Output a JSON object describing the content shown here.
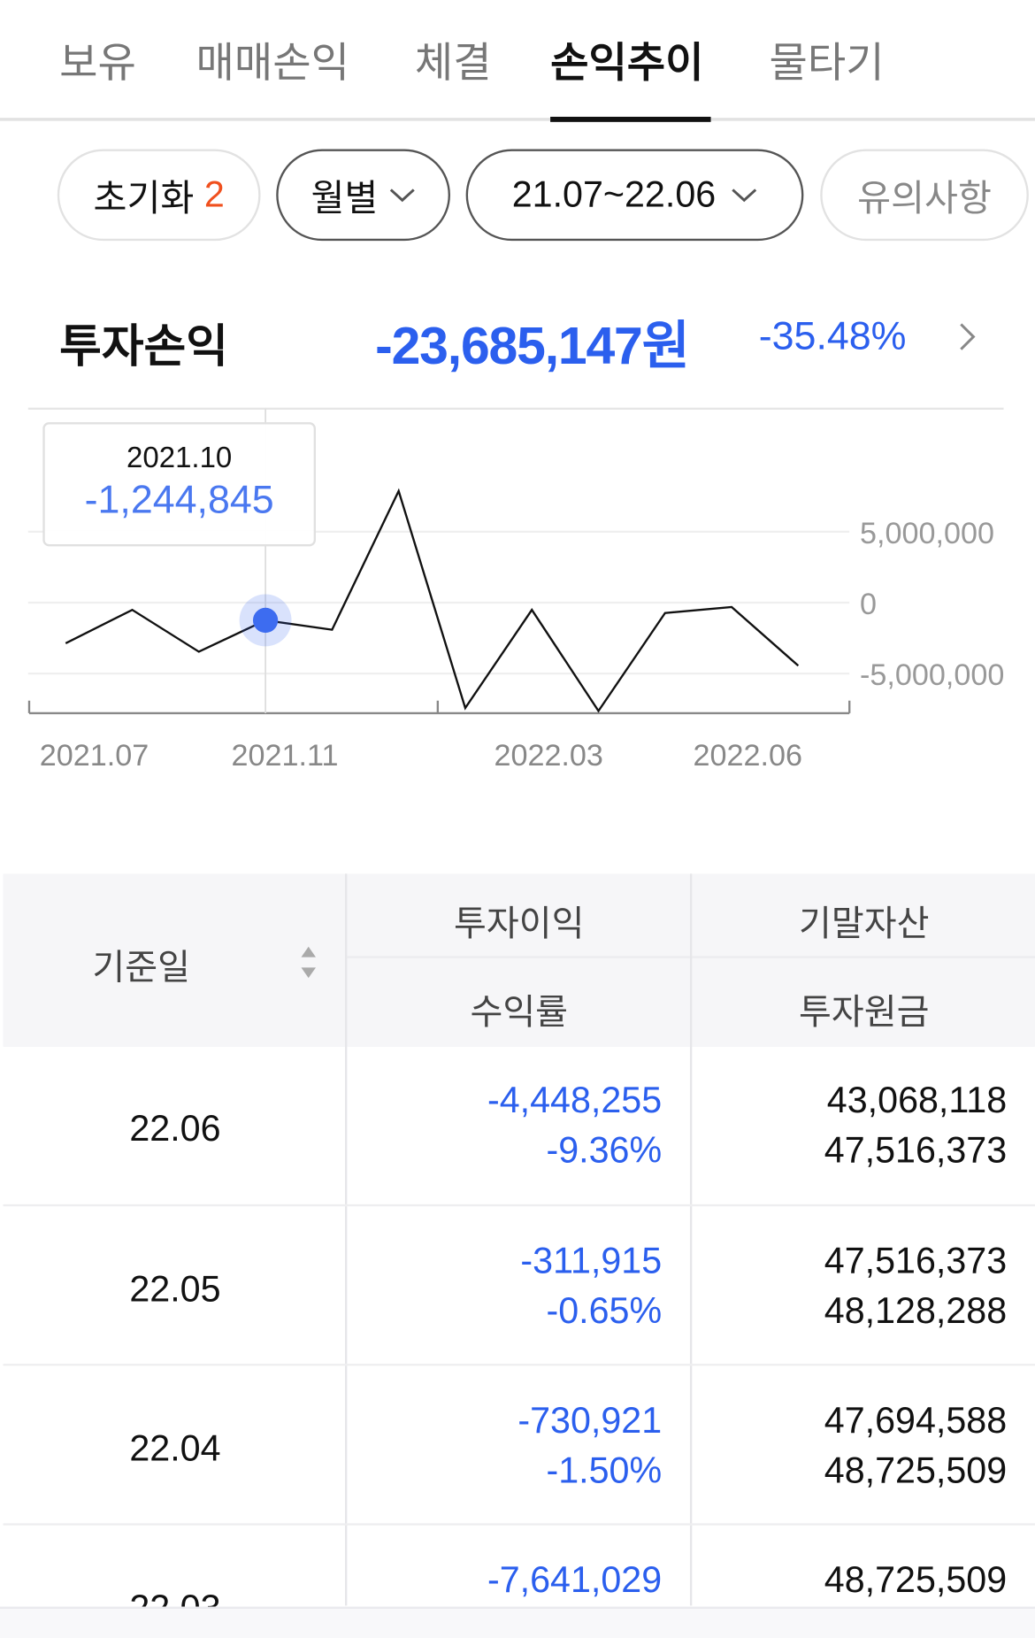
{
  "tabs": [
    {
      "label": "보유"
    },
    {
      "label": "매매손익"
    },
    {
      "label": "체결"
    },
    {
      "label": "손익추이",
      "active": true
    },
    {
      "label": "물타기"
    }
  ],
  "filters": {
    "reset_label": "초기화",
    "reset_count": "2",
    "period_type": "월별",
    "date_range": "21.07~22.06",
    "notice_label": "유의사항"
  },
  "summary": {
    "label": "투자손익",
    "amount": "-23,685,147원",
    "rate": "-35.48%"
  },
  "colors": {
    "accent": "#2b5fee",
    "reset_count": "#f0501e"
  },
  "tooltip": {
    "date": "2021.10",
    "value": "-1,244,845"
  },
  "chart_data": {
    "type": "line",
    "x": [
      "2021.07",
      "2021.08",
      "2021.09",
      "2021.10",
      "2021.11",
      "2021.12",
      "2022.01",
      "2022.02",
      "2022.03",
      "2022.04",
      "2022.05",
      "2022.06"
    ],
    "values": [
      -2870000,
      -510000,
      -3460000,
      -1244845,
      -1910000,
      7870000,
      -7430000,
      -510000,
      -7641029,
      -730921,
      -311915,
      -4448255
    ],
    "x_tick_labels": [
      "2021.07",
      "2021.11",
      "2022.03",
      "2022.06"
    ],
    "y_tick_labels": [
      "5,000,000",
      "0",
      "-5,000,000"
    ],
    "y_ticks": [
      5000000,
      0,
      -5000000
    ],
    "highlight": "2021.10",
    "grid": true
  },
  "table": {
    "headers": {
      "date": "기준일",
      "profit": "투자이익",
      "rate": "수익률",
      "end_asset": "기말자산",
      "principal": "투자원금"
    },
    "rows": [
      {
        "date": "22.06",
        "profit": "-4,448,255",
        "rate": "-9.36%",
        "end_asset": "43,068,118",
        "principal": "47,516,373"
      },
      {
        "date": "22.05",
        "profit": "-311,915",
        "rate": "-0.65%",
        "end_asset": "47,516,373",
        "principal": "48,128,288"
      },
      {
        "date": "22.04",
        "profit": "-730,921",
        "rate": "-1.50%",
        "end_asset": "47,694,588",
        "principal": "48,725,509"
      },
      {
        "date": "22.03",
        "profit": "-7,641,029",
        "end_asset": "48,725,509"
      }
    ]
  }
}
